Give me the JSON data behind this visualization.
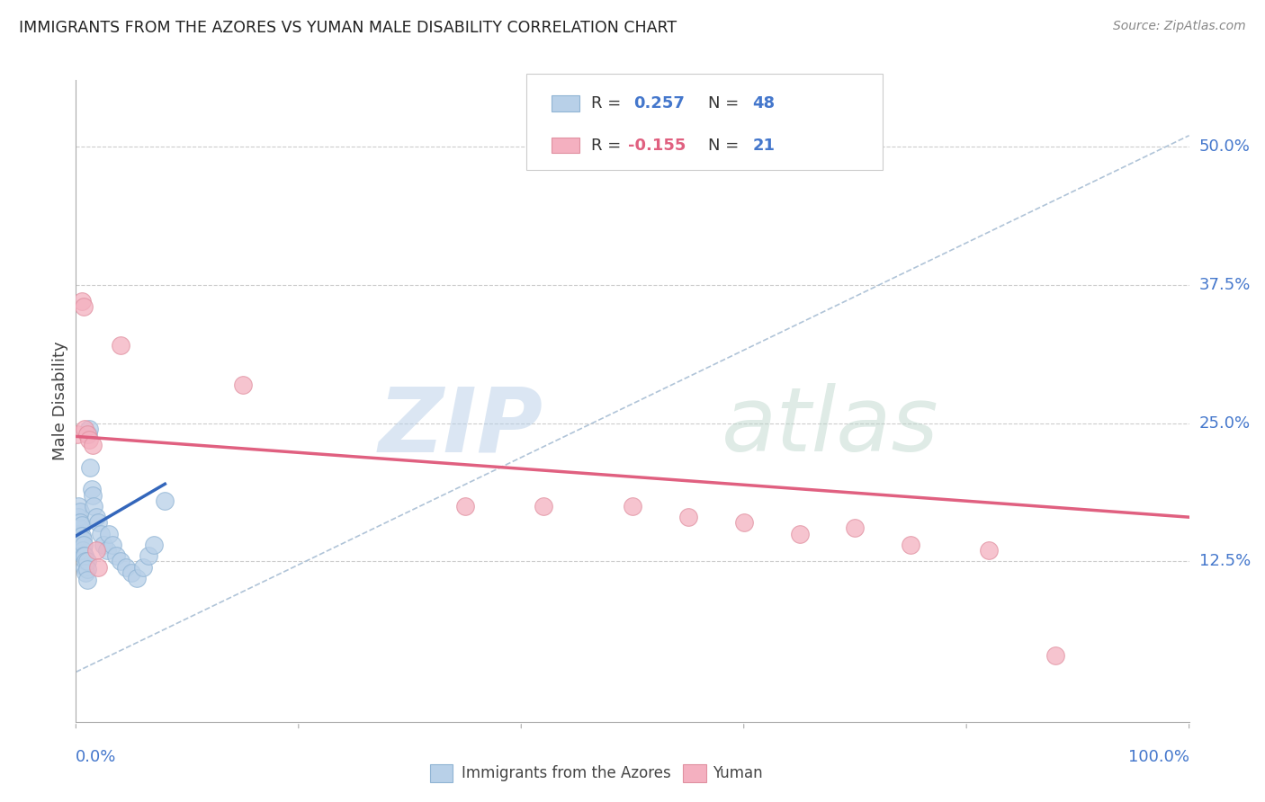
{
  "title": "IMMIGRANTS FROM THE AZORES VS YUMAN MALE DISABILITY CORRELATION CHART",
  "source": "Source: ZipAtlas.com",
  "ylabel": "Male Disability",
  "ytick_vals": [
    0.125,
    0.25,
    0.375,
    0.5
  ],
  "ytick_labels": [
    "12.5%",
    "25.0%",
    "37.5%",
    "50.0%"
  ],
  "xlim": [
    0.0,
    1.0
  ],
  "ylim": [
    -0.02,
    0.56
  ],
  "watermark": "ZIPatlas",
  "blue_scatter_x": [
    0.001,
    0.001,
    0.002,
    0.002,
    0.002,
    0.003,
    0.003,
    0.003,
    0.003,
    0.004,
    0.004,
    0.004,
    0.005,
    0.005,
    0.005,
    0.006,
    0.006,
    0.007,
    0.007,
    0.008,
    0.008,
    0.009,
    0.009,
    0.01,
    0.01,
    0.01,
    0.011,
    0.012,
    0.013,
    0.014,
    0.015,
    0.016,
    0.018,
    0.02,
    0.022,
    0.025,
    0.028,
    0.03,
    0.033,
    0.036,
    0.04,
    0.045,
    0.05,
    0.055,
    0.06,
    0.065,
    0.07,
    0.08
  ],
  "blue_scatter_y": [
    0.155,
    0.145,
    0.175,
    0.165,
    0.15,
    0.16,
    0.155,
    0.145,
    0.135,
    0.17,
    0.16,
    0.148,
    0.158,
    0.148,
    0.14,
    0.145,
    0.135,
    0.14,
    0.13,
    0.13,
    0.12,
    0.125,
    0.115,
    0.125,
    0.118,
    0.108,
    0.24,
    0.245,
    0.21,
    0.19,
    0.185,
    0.175,
    0.165,
    0.16,
    0.15,
    0.14,
    0.135,
    0.15,
    0.14,
    0.13,
    0.125,
    0.12,
    0.115,
    0.11,
    0.12,
    0.13,
    0.14,
    0.18
  ],
  "pink_scatter_x": [
    0.001,
    0.005,
    0.007,
    0.008,
    0.01,
    0.012,
    0.015,
    0.018,
    0.02,
    0.04,
    0.15,
    0.35,
    0.42,
    0.5,
    0.55,
    0.6,
    0.65,
    0.7,
    0.75,
    0.82,
    0.88
  ],
  "pink_scatter_y": [
    0.24,
    0.36,
    0.355,
    0.245,
    0.24,
    0.235,
    0.23,
    0.135,
    0.12,
    0.32,
    0.285,
    0.175,
    0.175,
    0.175,
    0.165,
    0.16,
    0.15,
    0.155,
    0.14,
    0.135,
    0.04
  ],
  "blue_line_x": [
    0.0,
    0.08
  ],
  "blue_line_y": [
    0.148,
    0.195
  ],
  "pink_line_x": [
    0.0,
    1.0
  ],
  "pink_line_y": [
    0.238,
    0.165
  ],
  "dashed_line_x": [
    0.0,
    1.0
  ],
  "dashed_line_y": [
    0.025,
    0.51
  ],
  "xtick_positions": [
    0.0,
    0.2,
    0.4,
    0.6,
    0.8,
    1.0
  ],
  "xtick_labels_bottom": [
    "0.0%",
    "",
    "",
    "",
    "",
    "100.0%"
  ]
}
